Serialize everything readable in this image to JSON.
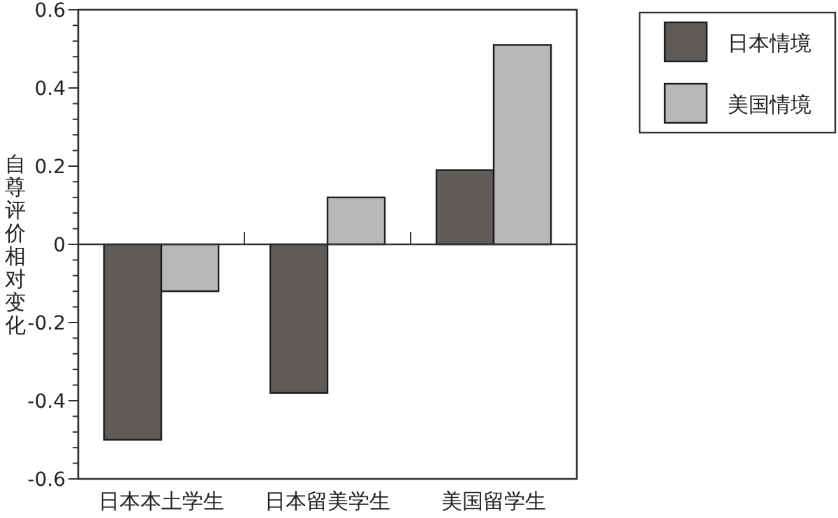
{
  "chart_data": {
    "type": "bar",
    "ylabel": "自尊评价相对变化",
    "categories": [
      "日本本土学生",
      "日本留美学生",
      "美国留学生"
    ],
    "series": [
      {
        "name": "日本情境",
        "color": "#5f5b58",
        "values": [
          -0.5,
          -0.38,
          0.19
        ]
      },
      {
        "name": "美国情境",
        "color": "#b9b7b8",
        "values": [
          -0.12,
          0.12,
          0.51
        ]
      }
    ],
    "ylim": [
      -0.6,
      0.6
    ],
    "yticks": [
      -0.6,
      {
        "value": -0.56,
        "label": null
      },
      {
        "value": -0.52,
        "label": null
      },
      {
        "value": -0.48,
        "label": null
      },
      {
        "value": -0.44,
        "label": null
      },
      -0.4,
      {
        "value": -0.36,
        "label": null
      },
      {
        "value": -0.32,
        "label": null
      },
      {
        "value": -0.28,
        "label": null
      },
      {
        "value": -0.24,
        "label": null
      },
      -0.2,
      {
        "value": -0.16,
        "label": null
      },
      {
        "value": -0.12,
        "label": null
      },
      {
        "value": -0.08,
        "label": null
      },
      {
        "value": -0.04,
        "label": null
      },
      0,
      {
        "value": 0.04,
        "label": null
      },
      {
        "value": 0.08,
        "label": null
      },
      {
        "value": 0.12,
        "label": null
      },
      {
        "value": 0.16,
        "label": null
      },
      0.2,
      {
        "value": 0.24,
        "label": null
      },
      {
        "value": 0.28,
        "label": null
      },
      {
        "value": 0.32,
        "label": null
      },
      {
        "value": 0.36,
        "label": null
      },
      0.4,
      {
        "value": 0.44,
        "label": null
      },
      {
        "value": 0.48,
        "label": null
      },
      {
        "value": 0.52,
        "label": null
      },
      {
        "value": 0.56,
        "label": null
      },
      0.6
    ],
    "legend": "top right"
  }
}
